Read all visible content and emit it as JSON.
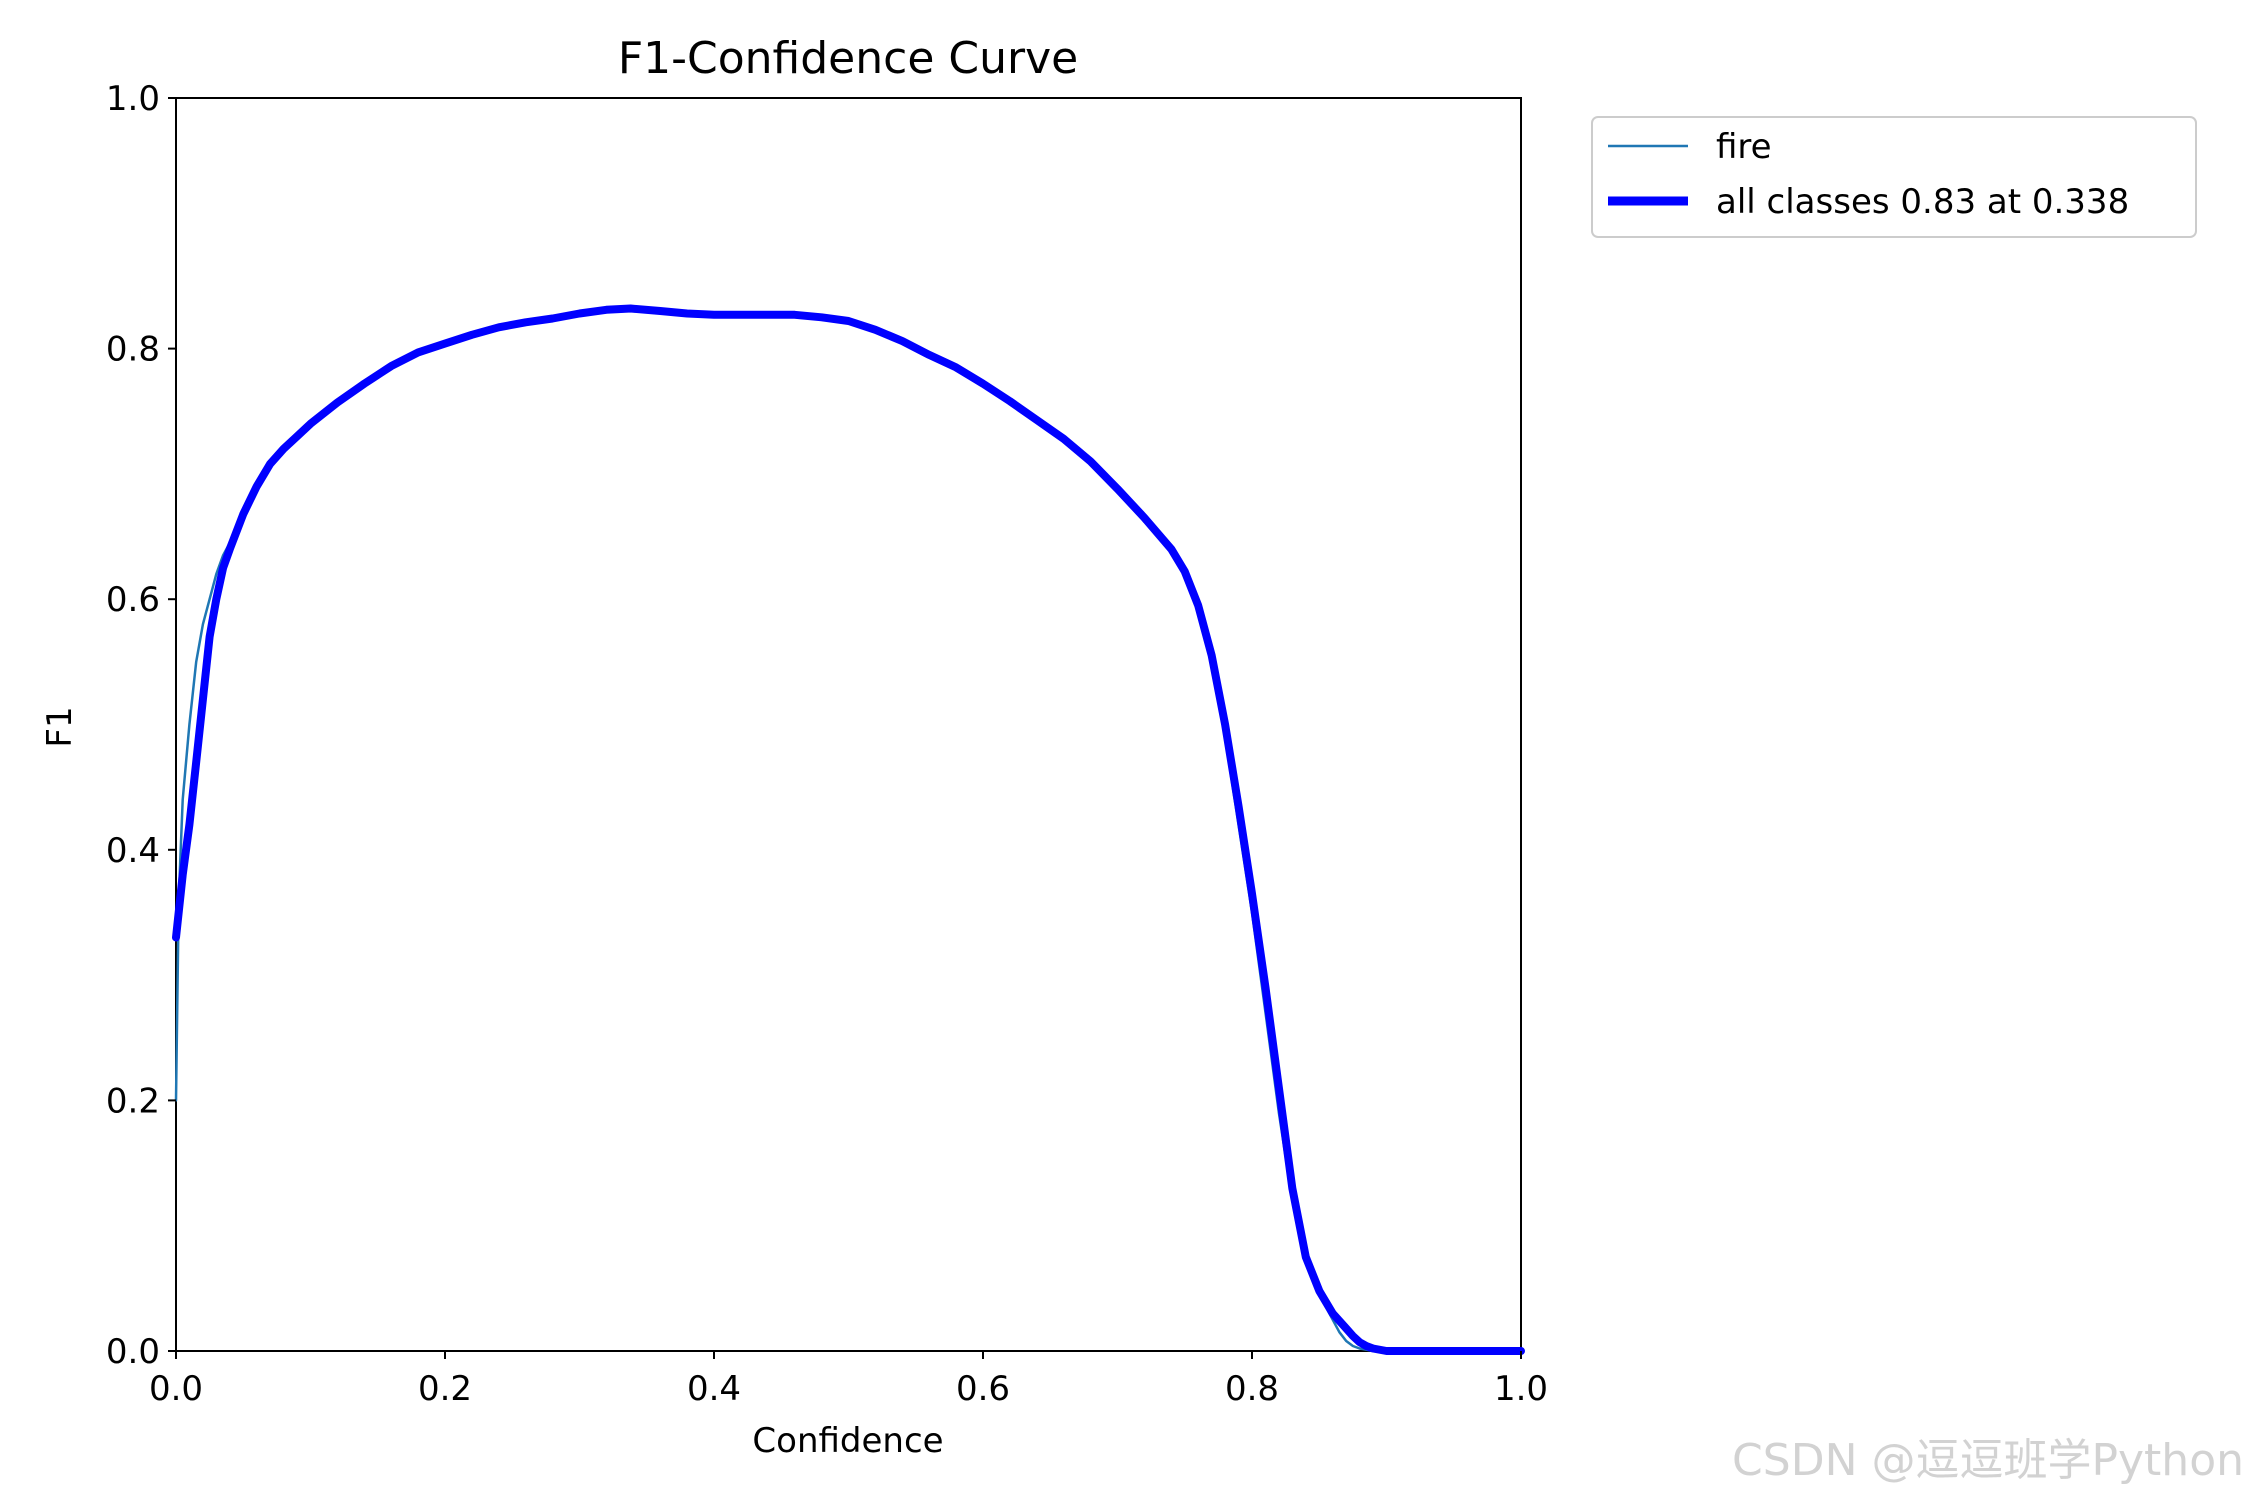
{
  "chart_data": {
    "type": "line",
    "title": "F1-Confidence Curve",
    "xlabel": "Confidence",
    "ylabel": "F1",
    "xlim": [
      0.0,
      1.0
    ],
    "ylim": [
      0.0,
      1.0
    ],
    "xticks": [
      "0.0",
      "0.2",
      "0.4",
      "0.6",
      "0.8",
      "1.0"
    ],
    "yticks": [
      "0.0",
      "0.2",
      "0.4",
      "0.6",
      "0.8",
      "1.0"
    ],
    "grid": false,
    "legend_position": "outside-top-right",
    "series": [
      {
        "name": "fire",
        "color": "#1f77b4",
        "x": [
          0.0,
          0.002,
          0.005,
          0.01,
          0.015,
          0.02,
          0.025,
          0.03,
          0.035,
          0.04,
          0.05,
          0.06,
          0.07,
          0.08,
          0.09,
          0.1,
          0.12,
          0.14,
          0.16,
          0.18,
          0.2,
          0.22,
          0.24,
          0.26,
          0.28,
          0.3,
          0.32,
          0.338,
          0.36,
          0.38,
          0.4,
          0.42,
          0.44,
          0.46,
          0.48,
          0.5,
          0.52,
          0.54,
          0.56,
          0.58,
          0.6,
          0.62,
          0.64,
          0.66,
          0.68,
          0.7,
          0.72,
          0.74,
          0.75,
          0.76,
          0.77,
          0.78,
          0.79,
          0.8,
          0.81,
          0.82,
          0.83,
          0.84,
          0.85,
          0.86,
          0.865,
          0.87,
          0.875,
          0.88,
          0.885,
          0.89,
          0.9,
          0.92,
          0.95,
          1.0
        ],
        "y": [
          0.2,
          0.36,
          0.44,
          0.5,
          0.55,
          0.58,
          0.6,
          0.62,
          0.635,
          0.645,
          0.67,
          0.69,
          0.71,
          0.72,
          0.73,
          0.74,
          0.758,
          0.773,
          0.787,
          0.797,
          0.804,
          0.811,
          0.817,
          0.821,
          0.824,
          0.828,
          0.831,
          0.832,
          0.83,
          0.828,
          0.827,
          0.827,
          0.827,
          0.827,
          0.825,
          0.822,
          0.815,
          0.806,
          0.795,
          0.785,
          0.772,
          0.758,
          0.743,
          0.728,
          0.71,
          0.688,
          0.665,
          0.64,
          0.62,
          0.6,
          0.55,
          0.49,
          0.42,
          0.35,
          0.27,
          0.19,
          0.12,
          0.07,
          0.045,
          0.025,
          0.015,
          0.008,
          0.004,
          0.002,
          0.001,
          0.0,
          0.0,
          0.0,
          0.0,
          0.0
        ]
      },
      {
        "name": "all classes 0.83 at 0.338",
        "color": "#0000ff",
        "x": [
          0.0,
          0.005,
          0.01,
          0.015,
          0.02,
          0.025,
          0.03,
          0.035,
          0.04,
          0.05,
          0.06,
          0.07,
          0.08,
          0.09,
          0.1,
          0.12,
          0.14,
          0.16,
          0.18,
          0.2,
          0.22,
          0.24,
          0.26,
          0.28,
          0.3,
          0.32,
          0.338,
          0.36,
          0.38,
          0.4,
          0.42,
          0.44,
          0.46,
          0.48,
          0.5,
          0.52,
          0.54,
          0.56,
          0.58,
          0.6,
          0.62,
          0.64,
          0.66,
          0.68,
          0.7,
          0.72,
          0.74,
          0.75,
          0.76,
          0.77,
          0.78,
          0.79,
          0.8,
          0.81,
          0.82,
          0.83,
          0.84,
          0.85,
          0.86,
          0.87,
          0.875,
          0.88,
          0.885,
          0.89,
          0.9,
          0.92,
          0.95,
          1.0
        ],
        "y": [
          0.33,
          0.38,
          0.42,
          0.47,
          0.52,
          0.57,
          0.6,
          0.625,
          0.64,
          0.668,
          0.69,
          0.708,
          0.72,
          0.73,
          0.74,
          0.757,
          0.772,
          0.786,
          0.797,
          0.804,
          0.811,
          0.817,
          0.821,
          0.824,
          0.828,
          0.831,
          0.832,
          0.83,
          0.828,
          0.827,
          0.827,
          0.827,
          0.827,
          0.825,
          0.822,
          0.815,
          0.806,
          0.795,
          0.785,
          0.772,
          0.758,
          0.743,
          0.728,
          0.71,
          0.688,
          0.665,
          0.64,
          0.622,
          0.595,
          0.555,
          0.5,
          0.435,
          0.365,
          0.29,
          0.21,
          0.13,
          0.075,
          0.048,
          0.03,
          0.018,
          0.012,
          0.007,
          0.004,
          0.002,
          0.0,
          0.0,
          0.0,
          0.0
        ]
      }
    ]
  },
  "watermark": "CSDN @逗逗班学Python"
}
